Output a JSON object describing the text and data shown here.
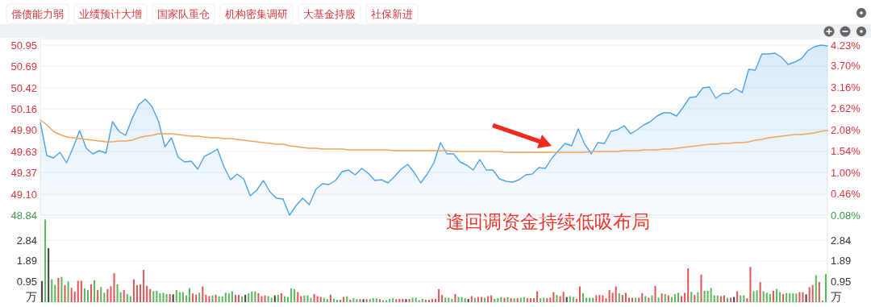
{
  "chart_data": [
    {
      "type": "other",
      "categories": [
        "偿债能力弱",
        "业绩预计大增",
        "国家队重仓",
        "机构密集调研",
        "大基金持股",
        "社保新进"
      ]
    },
    {
      "type": "line",
      "categories": [
        null,
        null,
        null,
        null,
        null,
        null,
        null,
        null,
        null,
        null,
        null,
        null,
        null,
        null,
        null,
        null,
        null,
        null,
        null,
        null,
        null,
        null,
        null,
        null,
        null,
        null,
        null,
        null,
        null,
        null,
        null,
        null,
        null,
        null,
        null,
        null,
        null,
        null,
        null,
        null,
        null,
        null,
        null,
        null,
        null,
        null,
        null,
        null,
        null,
        null,
        null,
        null,
        null,
        null,
        null,
        null,
        null,
        null,
        null,
        null,
        null,
        null,
        null,
        null,
        null,
        null,
        null,
        null,
        null,
        null,
        null,
        null,
        null,
        null,
        null,
        null,
        null,
        null,
        null,
        null,
        null,
        null,
        null,
        null,
        null,
        null,
        null,
        null,
        null,
        null,
        null,
        null,
        null,
        null,
        null,
        null,
        null,
        null,
        null,
        null,
        null,
        null,
        null,
        null,
        null,
        null,
        null,
        null,
        null,
        null,
        null,
        null,
        null,
        null,
        null,
        null,
        null,
        null,
        null,
        null,
        null
      ],
      "ylim": [
        48.84,
        50.95
      ],
      "yticks": [
        48.84,
        {
          "value": 49.1,
          "label": "49.10"
        },
        49.37,
        49.63,
        {
          "value": 49.9,
          "label": "49.90"
        },
        50.16,
        50.42,
        50.69,
        50.95
      ],
      "y2lim": [
        -0.08,
        4.23
      ],
      "y2ticks": [
        {
          "value": -0.08,
          "label": "0.08%"
        },
        {
          "value": 0.46,
          "label": "0.46%"
        },
        {
          "value": 1.0,
          "label": "1.00%"
        },
        {
          "value": 1.54,
          "label": "1.54%"
        },
        {
          "value": 2.08,
          "label": "2.08%"
        },
        {
          "value": 2.62,
          "label": "2.62%"
        },
        {
          "value": 3.16,
          "label": "3.16%"
        },
        {
          "value": 3.7,
          "label": "3.70%"
        },
        {
          "value": 4.23,
          "label": "4.23%"
        }
      ],
      "grid": "y",
      "tick_labels": "y",
      "annotations": [
        "逢回调资金持续低吸布局"
      ],
      "series": [
        {
          "type": "area",
          "color": "#4fa3e6",
          "values": [
            49.99,
            49.58,
            49.55,
            49.62,
            49.49,
            49.68,
            49.89,
            49.67,
            49.6,
            49.64,
            49.61,
            50.0,
            49.88,
            49.83,
            50.04,
            50.21,
            50.28,
            50.19,
            50.01,
            49.69,
            49.8,
            49.56,
            49.5,
            49.51,
            49.41,
            49.57,
            49.61,
            49.66,
            49.44,
            49.28,
            49.35,
            49.29,
            49.08,
            49.15,
            49.27,
            49.13,
            49.05,
            49.04,
            48.84,
            48.96,
            49.05,
            48.97,
            49.16,
            49.23,
            49.22,
            49.27,
            49.38,
            49.4,
            49.34,
            49.42,
            49.36,
            49.27,
            49.28,
            49.24,
            49.32,
            49.41,
            49.47,
            49.37,
            49.24,
            49.35,
            49.49,
            49.74,
            49.6,
            49.6,
            49.5,
            49.46,
            49.4,
            49.53,
            49.4,
            49.4,
            49.29,
            49.26,
            49.25,
            49.28,
            49.34,
            49.35,
            49.43,
            49.42,
            49.55,
            49.64,
            49.73,
            49.7,
            49.91,
            49.72,
            49.6,
            49.74,
            49.73,
            49.88,
            49.9,
            49.95,
            49.85,
            49.9,
            49.96,
            50.0,
            50.07,
            50.11,
            50.11,
            50.07,
            50.18,
            50.3,
            50.31,
            50.42,
            50.43,
            50.29,
            50.35,
            50.35,
            50.41,
            50.36,
            50.65,
            50.64,
            50.84,
            50.84,
            50.85,
            50.8,
            50.71,
            50.74,
            50.78,
            50.88,
            50.93,
            50.95,
            50.94
          ]
        },
        {
          "type": "line",
          "color": "#f0a35e",
          "values": [
            50.02,
            49.96,
            49.88,
            49.84,
            49.81,
            49.8,
            49.79,
            49.78,
            49.77,
            49.76,
            49.75,
            49.75,
            49.76,
            49.76,
            49.77,
            49.8,
            49.82,
            49.83,
            49.85,
            49.85,
            49.85,
            49.84,
            49.83,
            49.82,
            49.82,
            49.81,
            49.8,
            49.8,
            49.79,
            49.79,
            49.78,
            49.77,
            49.76,
            49.75,
            49.74,
            49.73,
            49.72,
            49.72,
            49.7,
            49.69,
            49.68,
            49.67,
            49.67,
            49.66,
            49.66,
            49.66,
            49.66,
            49.65,
            49.65,
            49.65,
            49.65,
            49.65,
            49.65,
            49.65,
            49.64,
            49.64,
            49.64,
            49.64,
            49.64,
            49.64,
            49.64,
            49.64,
            49.64,
            49.63,
            49.63,
            49.63,
            49.63,
            49.63,
            49.63,
            49.63,
            49.63,
            49.62,
            49.62,
            49.62,
            49.62,
            49.62,
            49.62,
            49.62,
            49.62,
            49.62,
            49.62,
            49.62,
            49.62,
            49.62,
            49.63,
            49.63,
            49.63,
            49.63,
            49.63,
            49.64,
            49.64,
            49.64,
            49.65,
            49.65,
            49.65,
            49.66,
            49.66,
            49.67,
            49.68,
            49.69,
            49.7,
            49.71,
            49.72,
            49.72,
            49.73,
            49.73,
            49.74,
            49.74,
            49.75,
            49.77,
            49.78,
            49.8,
            49.81,
            49.82,
            49.83,
            49.84,
            49.84,
            49.85,
            49.86,
            49.88,
            49.89
          ]
        }
      ]
    },
    {
      "type": "bar",
      "categories": [
        null,
        null,
        null,
        null,
        null,
        null,
        null,
        null,
        null,
        null,
        null,
        null,
        null,
        null,
        null,
        null,
        null,
        null,
        null,
        null,
        null,
        null,
        null,
        null,
        null,
        null,
        null,
        null,
        null,
        null,
        null,
        null,
        null,
        null,
        null,
        null,
        null,
        null,
        null,
        null,
        null,
        null,
        null,
        null,
        null,
        null,
        null,
        null,
        null,
        null,
        null,
        null,
        null,
        null,
        null,
        null,
        null,
        null,
        null,
        null,
        null,
        null,
        null,
        null,
        null,
        null,
        null,
        null,
        null,
        null,
        null,
        null,
        null,
        null,
        null,
        null,
        null,
        null,
        null,
        null,
        null,
        null,
        null,
        null,
        null,
        null,
        null,
        null,
        null,
        null,
        null,
        null,
        null,
        null,
        null,
        null,
        null,
        null,
        null,
        null,
        null,
        null,
        null,
        null,
        null,
        null,
        null,
        null,
        null,
        null,
        null,
        null,
        null,
        null,
        null,
        null,
        null,
        null,
        null,
        null,
        null,
        null,
        null,
        null,
        null,
        null,
        null,
        null,
        null,
        null,
        null,
        null,
        null,
        null,
        null,
        null,
        null,
        null,
        null,
        null,
        null,
        null,
        null,
        null,
        null,
        null,
        null,
        null,
        null,
        null,
        null,
        null,
        null,
        null,
        null,
        null,
        null,
        null,
        null,
        null,
        null,
        null,
        null,
        null,
        null,
        null,
        null,
        null,
        null,
        null,
        null,
        null,
        null,
        null,
        null,
        null,
        null,
        null,
        null,
        null,
        null,
        null,
        null,
        null,
        null,
        null,
        null,
        null,
        null,
        null,
        null,
        null,
        null,
        null,
        null,
        null,
        null,
        null,
        null,
        null,
        null,
        null,
        null,
        null,
        null,
        null,
        null,
        null,
        null,
        null,
        null,
        null,
        null,
        null,
        null,
        null,
        null,
        null,
        null,
        null,
        null,
        null,
        null,
        null,
        null,
        null,
        null,
        null,
        null,
        null,
        null,
        null,
        null,
        null,
        null,
        null,
        null,
        null,
        null,
        null
      ],
      "ylim": [
        0,
        3.88
      ],
      "yticks": [
        0.95,
        1.89,
        2.84
      ],
      "y2lim": [
        0,
        3.88
      ],
      "y2ticks": [
        0.95,
        1.89,
        2.84
      ],
      "ylabel": "万",
      "y2label": "万",
      "grid": "y",
      "tick_labels": "y",
      "values": [
        0.97,
        3.79,
        2.48,
        1.05,
        0.79,
        1.11,
        1.16,
        0.78,
        0.95,
        0.66,
        0.49,
        0.98,
        0.98,
        0.63,
        0.56,
        0.82,
        1.01,
        0.56,
        0.69,
        0.43,
        0.6,
        0.73,
        1.33,
        0.82,
        0.46,
        0.56,
        0.37,
        0.28,
        1.05,
        0.78,
        0.82,
        1.48,
        0.75,
        0.6,
        0.5,
        0.52,
        0.41,
        0.43,
        0.37,
        0.37,
        0.36,
        0.56,
        0.46,
        0.46,
        0.31,
        0.65,
        0.4,
        0.34,
        0.43,
        0.72,
        0.34,
        0.28,
        0.31,
        0.34,
        0.27,
        0.27,
        0.43,
        0.4,
        0.5,
        0.34,
        0.34,
        0.27,
        0.34,
        0.4,
        0.49,
        0.49,
        0.41,
        0.28,
        0.31,
        0.28,
        0.2,
        0.31,
        0.33,
        0.41,
        0.27,
        0.24,
        0.63,
        0.59,
        0.46,
        0.28,
        0.31,
        0.31,
        0.2,
        0.37,
        0.28,
        0.24,
        0.2,
        0.14,
        0.34,
        0.15,
        0.11,
        0.11,
        0.24,
        0.27,
        0.11,
        0.18,
        0.14,
        0.14,
        0.14,
        0.14,
        0.14,
        0.18,
        0.18,
        0.14,
        0.09,
        0.09,
        0.15,
        0.18,
        0.14,
        0.15,
        0.15,
        0.14,
        0.15,
        0.2,
        0.2,
        0.09,
        0.15,
        0.11,
        0.11,
        0.15,
        0.15,
        0.6,
        0.33,
        0.2,
        0.2,
        0.15,
        0.37,
        0.24,
        0.24,
        0.18,
        0.15,
        0.28,
        0.2,
        0.24,
        0.24,
        0.2,
        0.28,
        0.31,
        0.15,
        0.18,
        0.24,
        0.2,
        0.24,
        0.18,
        0.18,
        0.18,
        0.2,
        0.24,
        0.18,
        0.18,
        0.18,
        0.5,
        0.18,
        0.2,
        0.18,
        0.2,
        0.46,
        0.33,
        0.28,
        0.47,
        0.24,
        0.28,
        0.24,
        0.15,
        0.72,
        0.41,
        0.2,
        0.2,
        0.2,
        0.31,
        0.33,
        0.31,
        0.18,
        0.56,
        0.43,
        0.72,
        0.41,
        0.33,
        0.43,
        0.2,
        0.2,
        0.2,
        0.2,
        0.41,
        0.28,
        0.2,
        0.31,
        0.75,
        0.2,
        0.4,
        0.37,
        0.31,
        0.24,
        0.37,
        0.43,
        0.28,
        0.43,
        1.55,
        0.47,
        0.33,
        0.46,
        1.26,
        0.52,
        0.52,
        0.65,
        0.31,
        0.31,
        0.28,
        0.31,
        0.2,
        0.2,
        0.24,
        0.5,
        0.31,
        0.31,
        0.18,
        1.62,
        0.5,
        0.54,
        0.92,
        0.5,
        0.43,
        0.37,
        0.52,
        0.6,
        0.46,
        0.37,
        0.41,
        0.41,
        0.41,
        0.4,
        0.46,
        0.46,
        0.36,
        0.69,
        0.78,
        1.24,
        0.92,
        0.08,
        1.29
      ],
      "colors": [
        "#444444",
        "#5cb85c",
        "#444444",
        "#5cb85c",
        "#5cb85c",
        "#e0575b",
        "#5cb85c",
        "#e0575b",
        "#5cb85c",
        "#e0575b",
        "#e0575b",
        "#e0575b",
        "#e0575b",
        "#5cb85c",
        "#5cb85c",
        "#e0575b",
        "#5cb85c",
        "#e0575b",
        "#5cb85c",
        "#5cb85c",
        "#e0575b",
        "#e0575b",
        "#e0575b",
        "#5cb85c",
        "#5cb85c",
        "#e0575b",
        "#5cb85c",
        "#5cb85c",
        "#e0575b",
        "#e0575b",
        "#e0575b",
        "#e0575b",
        "#e0575b",
        "#e0575b",
        "#5cb85c",
        "#5cb85c",
        "#5cb85c",
        "#5cb85c",
        "#5cb85c",
        "#e0575b",
        "#444444",
        "#5cb85c",
        "#5cb85c",
        "#5cb85c",
        "#5cb85c",
        "#5cb85c",
        "#e0575b",
        "#e0575b",
        "#5cb85c",
        "#e0575b",
        "#e0575b",
        "#e0575b",
        "#5cb85c",
        "#e0575b",
        "#5cb85c",
        "#5cb85c",
        "#5cb85c",
        "#5cb85c",
        "#5cb85c",
        "#e0575b",
        "#e0575b",
        "#5cb85c",
        "#444444",
        "#5cb85c",
        "#5cb85c",
        "#5cb85c",
        "#e0575b",
        "#e0575b",
        "#e0575b",
        "#5cb85c",
        "#5cb85c",
        "#444444",
        "#5cb85c",
        "#e0575b",
        "#5cb85c",
        "#5cb85c",
        "#5cb85c",
        "#5cb85c",
        "#e0575b",
        "#e0575b",
        "#5cb85c",
        "#5cb85c",
        "#5cb85c",
        "#e0575b",
        "#e0575b",
        "#e0575b",
        "#5cb85c",
        "#5cb85c",
        "#e0575b",
        "#5cb85c",
        "#5cb85c",
        "#e0575b",
        "#e0575b",
        "#5cb85c",
        "#e0575b",
        "#5cb85c",
        "#5cb85c",
        "#e0575b",
        "#444444",
        "#e0575b",
        "#5cb85c",
        "#5cb85c",
        "#5cb85c",
        "#e0575b",
        "#5cb85c",
        "#5cb85c",
        "#5cb85c",
        "#5cb85c",
        "#e0575b",
        "#e0575b",
        "#e0575b",
        "#444444",
        "#e0575b",
        "#5cb85c",
        "#5cb85c",
        "#5cb85c",
        "#5cb85c",
        "#e0575b",
        "#e0575b",
        "#e0575b",
        "#e0575b",
        "#e0575b",
        "#e0575b",
        "#5cb85c",
        "#5cb85c",
        "#5cb85c",
        "#e0575b",
        "#5cb85c",
        "#5cb85c",
        "#5cb85c",
        "#444444",
        "#e0575b",
        "#5cb85c",
        "#e0575b",
        "#e0575b",
        "#5cb85c",
        "#e0575b",
        "#e0575b",
        "#5cb85c",
        "#5cb85c",
        "#5cb85c",
        "#e0575b",
        "#5cb85c",
        "#e0575b",
        "#5cb85c",
        "#e0575b",
        "#5cb85c",
        "#5cb85c",
        "#e0575b",
        "#e0575b",
        "#e0575b",
        "#e0575b",
        "#5cb85c",
        "#5cb85c",
        "#e0575b",
        "#e0575b",
        "#e0575b",
        "#5cb85c",
        "#e0575b",
        "#e0575b",
        "#444444",
        "#5cb85c",
        "#5cb85c",
        "#e0575b",
        "#e0575b",
        "#5cb85c",
        "#5cb85c",
        "#5cb85c",
        "#5cb85c",
        "#e0575b",
        "#e0575b",
        "#e0575b",
        "#e0575b",
        "#e0575b",
        "#e0575b",
        "#e0575b",
        "#5cb85c",
        "#e0575b",
        "#e0575b",
        "#e0575b",
        "#e0575b",
        "#5cb85c",
        "#e0575b",
        "#e0575b",
        "#5cb85c",
        "#e0575b",
        "#5cb85c",
        "#e0575b",
        "#5cb85c",
        "#e0575b",
        "#5cb85c",
        "#e0575b",
        "#5cb85c",
        "#5cb85c",
        "#5cb85c",
        "#e0575b",
        "#e0575b",
        "#e0575b",
        "#5cb85c",
        "#e0575b",
        "#5cb85c",
        "#e0575b",
        "#5cb85c",
        "#5cb85c",
        "#5cb85c",
        "#5cb85c",
        "#5cb85c",
        "#e0575b",
        "#e0575b",
        "#5cb85c",
        "#e0575b",
        "#444444",
        "#e0575b",
        "#5cb85c",
        "#5cb85c",
        "#e0575b",
        "#e0575b",
        "#5cb85c",
        "#5cb85c",
        "#e0575b",
        "#5cb85c",
        "#5cb85c",
        "#5cb85c",
        "#e0575b",
        "#5cb85c",
        "#5cb85c",
        "#e0575b",
        "#5cb85c",
        "#5cb85c",
        "#5cb85c",
        "#5cb85c",
        "#e0575b",
        "#e0575b",
        "#444444",
        "#e0575b",
        "#e0575b",
        "#5cb85c",
        "#e0575b",
        "#5cb85c",
        "#5cb85c"
      ]
    }
  ]
}
